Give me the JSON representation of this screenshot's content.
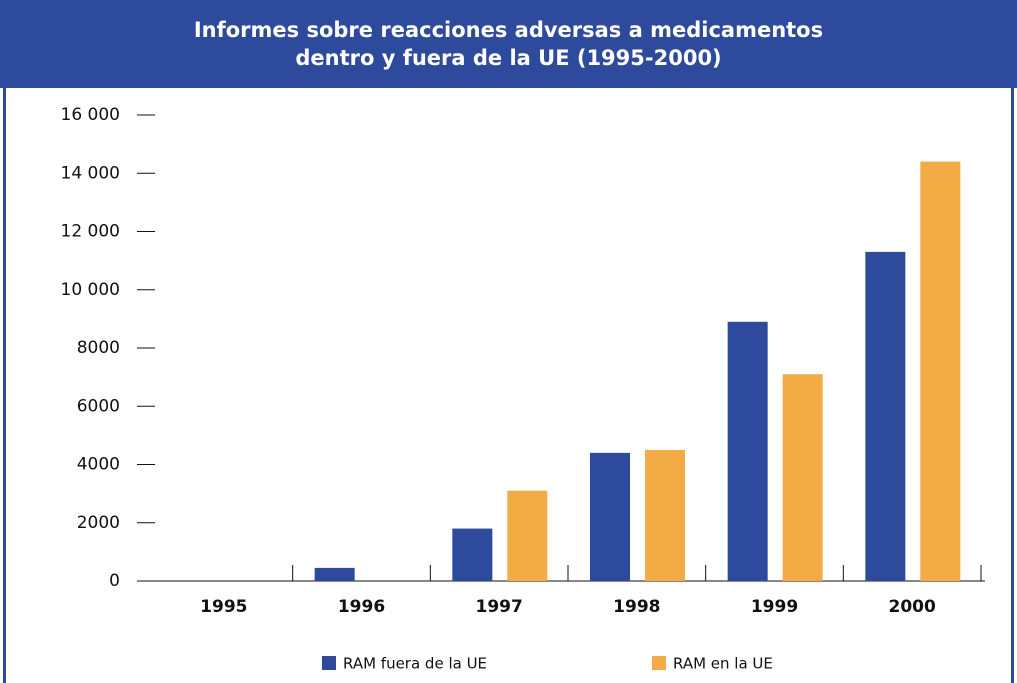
{
  "chart_data": {
    "type": "bar",
    "title": "Informes sobre reacciones adversas a medicamentos dentro y fuera de la UE (1995-2000)",
    "categories": [
      "1995",
      "1996",
      "1997",
      "1998",
      "1999",
      "2000"
    ],
    "series": [
      {
        "name": "RAM fuera de la UE",
        "color": "#2e4a9c",
        "values": [
          0,
          450,
          1800,
          4400,
          8900,
          11300
        ]
      },
      {
        "name": "RAM en la UE",
        "color": "#f2ab45",
        "values": [
          0,
          0,
          3100,
          4500,
          7100,
          14400
        ]
      }
    ],
    "ylim": [
      0,
      16000
    ],
    "yticks": [
      0,
      2000,
      4000,
      6000,
      8000,
      {
        "value": 10000,
        "label": "10 000"
      },
      {
        "value": 12000,
        "label": "12 000"
      },
      {
        "value": 14000,
        "label": "14 000"
      },
      {
        "value": 16000,
        "label": "16 000"
      }
    ],
    "legend": "bottom"
  }
}
